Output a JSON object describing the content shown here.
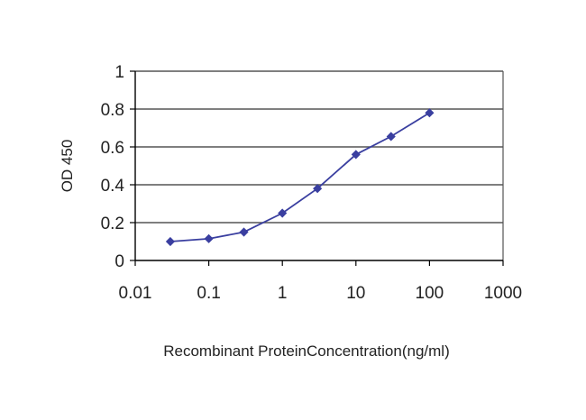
{
  "chart_data": {
    "type": "line",
    "title": "",
    "xlabel": "Recombinant ProteinConcentration(ng/ml)",
    "ylabel": "OD 450",
    "x_scale": "log",
    "xlim": [
      0.01,
      1000
    ],
    "ylim": [
      0,
      1
    ],
    "x_ticks": [
      "0.01",
      "0.1",
      "1",
      "10",
      "100",
      "1000"
    ],
    "y_ticks": [
      "0",
      "0.2",
      "0.4",
      "0.6",
      "0.8",
      "1"
    ],
    "grid": "horizontal",
    "legend": "none",
    "series": [
      {
        "color": "#3a3fa0",
        "marker": "diamond",
        "x": [
          0.03,
          0.1,
          0.3,
          1,
          3,
          10,
          30,
          100
        ],
        "y": [
          0.1,
          0.115,
          0.15,
          0.25,
          0.38,
          0.56,
          0.655,
          0.78
        ]
      }
    ]
  },
  "colors": {
    "plot_background": "#ffffff",
    "gridline": "#555555",
    "axis": "#000000",
    "series": "#3a3fa0"
  }
}
